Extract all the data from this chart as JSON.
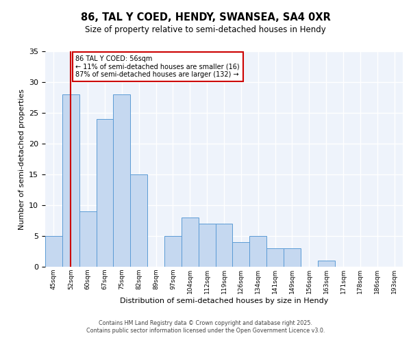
{
  "title1": "86, TAL Y COED, HENDY, SWANSEA, SA4 0XR",
  "title2": "Size of property relative to semi-detached houses in Hendy",
  "xlabel": "Distribution of semi-detached houses by size in Hendy",
  "ylabel": "Number of semi-detached properties",
  "categories": [
    "45sqm",
    "52sqm",
    "60sqm",
    "67sqm",
    "75sqm",
    "82sqm",
    "89sqm",
    "97sqm",
    "104sqm",
    "112sqm",
    "119sqm",
    "126sqm",
    "134sqm",
    "141sqm",
    "149sqm",
    "156sqm",
    "163sqm",
    "171sqm",
    "178sqm",
    "186sqm",
    "193sqm"
  ],
  "values": [
    5,
    28,
    9,
    24,
    28,
    15,
    0,
    5,
    8,
    7,
    7,
    4,
    5,
    3,
    3,
    0,
    1,
    0,
    0,
    0,
    0
  ],
  "bar_color": "#c5d8f0",
  "bar_edge_color": "#5b9bd5",
  "background_color": "#eef3fb",
  "grid_color": "#ffffff",
  "vline_x": 1,
  "vline_color": "#cc0000",
  "annotation_title": "86 TAL Y COED: 56sqm",
  "annotation_line1": "← 11% of semi-detached houses are smaller (16)",
  "annotation_line2": "87% of semi-detached houses are larger (132) →",
  "annotation_box_color": "#ffffff",
  "annotation_box_edge": "#cc0000",
  "ylim": [
    0,
    35
  ],
  "yticks": [
    0,
    5,
    10,
    15,
    20,
    25,
    30,
    35
  ],
  "footer1": "Contains HM Land Registry data © Crown copyright and database right 2025.",
  "footer2": "Contains public sector information licensed under the Open Government Licence v3.0."
}
